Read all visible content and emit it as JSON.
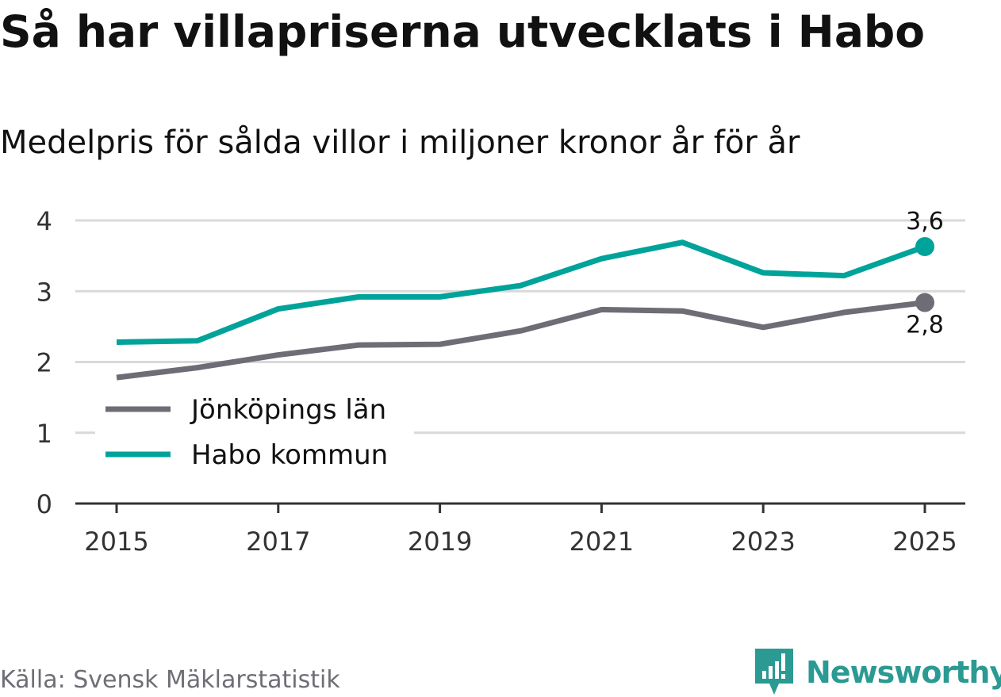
{
  "title": "Så har villapriserna utvecklats i Habo",
  "subtitle": "Medelpris för sålda villor i miljoner kronor år för år",
  "source": "Källa: Svensk Mäklarstatistik",
  "brand": "Newsworthy",
  "colors": {
    "habo": "#00a39a",
    "lan": "#6e6d76",
    "grid": "#d9d9d9",
    "axis": "#333333",
    "brand": "#2b9a92"
  },
  "chart_data": {
    "type": "line",
    "x": [
      2015,
      2016,
      2017,
      2018,
      2019,
      2020,
      2021,
      2022,
      2023,
      2024,
      2025
    ],
    "x_tick_labels": [
      "2015",
      "2017",
      "2019",
      "2021",
      "2023",
      "2025"
    ],
    "y_tick_labels": [
      "0",
      "1",
      "2",
      "3",
      "4"
    ],
    "ylim": [
      0,
      4
    ],
    "grid": true,
    "legend_position": "bottom-left",
    "series": [
      {
        "name": "Jönköpings län",
        "key": "lan",
        "values": [
          1.78,
          1.92,
          2.1,
          2.24,
          2.25,
          2.44,
          2.74,
          2.72,
          2.49,
          2.7,
          2.84
        ],
        "end_label": "2,8"
      },
      {
        "name": "Habo kommun",
        "key": "habo",
        "values": [
          2.28,
          2.3,
          2.75,
          2.92,
          2.92,
          3.08,
          3.46,
          3.69,
          3.26,
          3.22,
          3.63
        ],
        "end_label": "3,6"
      }
    ]
  }
}
